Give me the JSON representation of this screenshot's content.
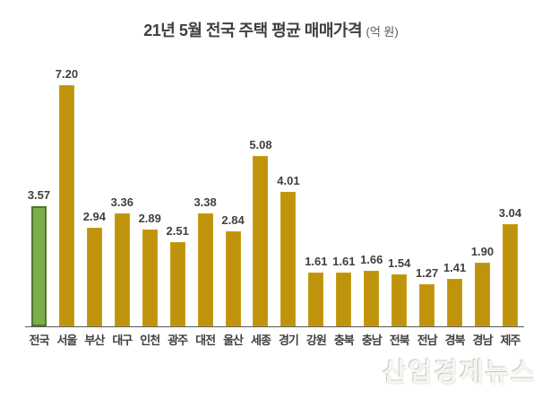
{
  "chart_data": {
    "type": "bar",
    "title": "21년 5월 전국 주택 평균 매매가격",
    "title_suffix": "(억 원)",
    "categories": [
      "전국",
      "서울",
      "부산",
      "대구",
      "인천",
      "광주",
      "대전",
      "울산",
      "세종",
      "경기",
      "강원",
      "충북",
      "충남",
      "전북",
      "전남",
      "경북",
      "경남",
      "제주"
    ],
    "values": [
      3.57,
      7.2,
      2.94,
      3.36,
      2.89,
      2.51,
      3.38,
      2.84,
      5.08,
      4.01,
      1.61,
      1.61,
      1.66,
      1.54,
      1.27,
      1.41,
      1.9,
      3.04
    ],
    "value_labels": [
      "3.57",
      "7.20",
      "2.94",
      "3.36",
      "2.89",
      "2.51",
      "3.38",
      "2.84",
      "5.08",
      "4.01",
      "1.61",
      "1.61",
      "1.66",
      "1.54",
      "1.27",
      "1.41",
      "1.90",
      "3.04"
    ],
    "highlight_index": 0,
    "bar_color": "#bf940c",
    "highlight_color": "#7cad4d",
    "highlight_border_color": "#4e782a",
    "axis_line_color": "#595959",
    "ylim": [
      0,
      7.5
    ],
    "gridlines": false,
    "legend": false,
    "xlabel": "",
    "ylabel": ""
  },
  "watermark": "산업경제뉴스"
}
